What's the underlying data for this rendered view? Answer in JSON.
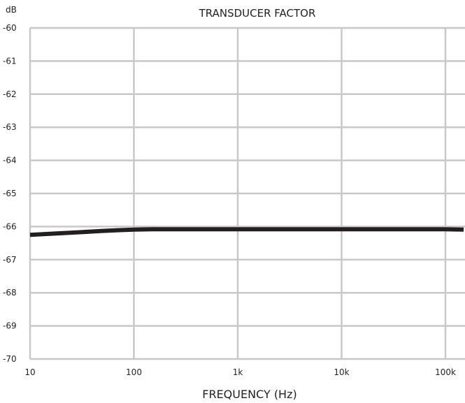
{
  "chart_data": {
    "type": "line",
    "title": "TRANSDUCER FACTOR",
    "xlabel": "FREQUENCY (Hz)",
    "ylabel": "dB",
    "x_scale": "log",
    "xlim": [
      10,
      150000
    ],
    "ylim": [
      -70,
      -60
    ],
    "x_ticks": [
      {
        "value": 10,
        "label": "10"
      },
      {
        "value": 100,
        "label": "100"
      },
      {
        "value": 1000,
        "label": "1k"
      },
      {
        "value": 10000,
        "label": "10k"
      },
      {
        "value": 100000,
        "label": "100k"
      }
    ],
    "y_ticks": [
      {
        "value": -60,
        "label": "-60"
      },
      {
        "value": -61,
        "label": "-61"
      },
      {
        "value": -62,
        "label": "-62"
      },
      {
        "value": -63,
        "label": "-63"
      },
      {
        "value": -64,
        "label": "-64"
      },
      {
        "value": -65,
        "label": "-65"
      },
      {
        "value": -66,
        "label": "-66"
      },
      {
        "value": -67,
        "label": "-67"
      },
      {
        "value": -68,
        "label": "-68"
      },
      {
        "value": -69,
        "label": "-69"
      },
      {
        "value": -70,
        "label": "-70"
      }
    ],
    "grid": true,
    "series": [
      {
        "color": "#231f20",
        "x": [
          10,
          20,
          30,
          50,
          70,
          100,
          150,
          200,
          500,
          1000,
          10000,
          100000,
          150000
        ],
        "y": [
          -66.25,
          -66.2,
          -66.17,
          -66.13,
          -66.11,
          -66.09,
          -66.08,
          -66.08,
          -66.08,
          -66.08,
          -66.08,
          -66.08,
          -66.09
        ]
      }
    ]
  }
}
